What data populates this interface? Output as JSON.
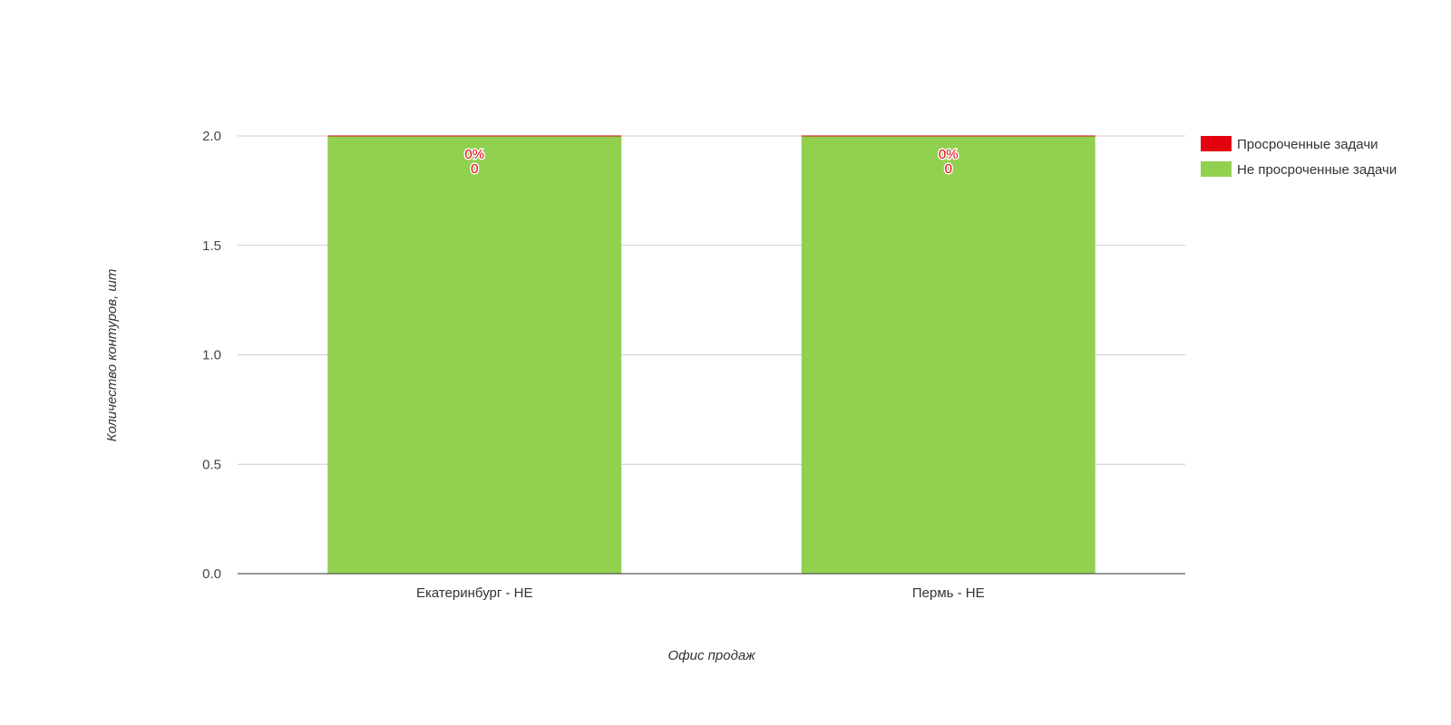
{
  "chart_data": {
    "type": "bar",
    "stacked": true,
    "categories": [
      "Екатеринбург - НЕ",
      "Пермь - НЕ"
    ],
    "series": [
      {
        "name": "Просроченные задачи",
        "values": [
          0,
          0
        ],
        "color": "#e3000f",
        "percent_labels": [
          "0%",
          "0%"
        ],
        "value_labels": [
          "0",
          "0"
        ]
      },
      {
        "name": "Не просроченные задачи",
        "values": [
          2,
          2
        ],
        "color": "#92d050"
      }
    ],
    "xlabel": "Офис продаж",
    "ylabel": "Количество контуров, шт",
    "ylim": [
      0,
      2
    ],
    "yticks": [
      "0.0",
      "0.5",
      "1.0",
      "1.5",
      "2.0"
    ],
    "ytick_values": [
      0,
      0.5,
      1,
      1.5,
      2
    ],
    "grid": true,
    "legend_position": "top-right",
    "colors": {
      "grid": "#cccccc",
      "axis": "#333333"
    }
  }
}
